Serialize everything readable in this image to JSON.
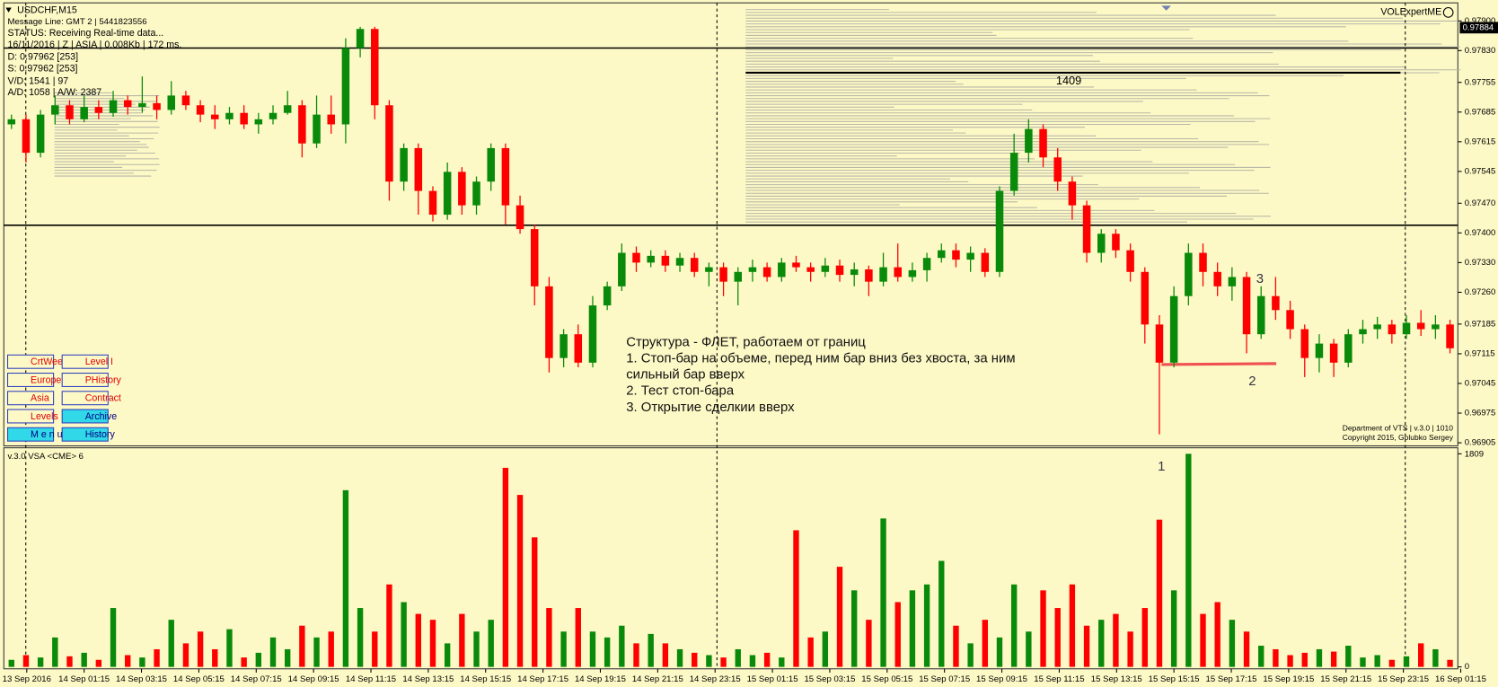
{
  "header": {
    "lines": [
      "USDCHF,M15",
      "Message Line: GMT 2 | 5441823556",
      "STATUS:  Receiving Real-time data...",
      "16/11/2016 | Z | ASIA | 0.008Kb | 172 ms.",
      "D: 0.97962  [253]",
      "S: 0.97962  [253]",
      "V/D: 1541 | 97",
      "A/D: 1058 | A/W: 2387"
    ],
    "brand": "VOLExpertME"
  },
  "buttons": [
    "CrtWeek",
    "Level I",
    "Europe",
    "PHistory",
    "Asia",
    "Contract",
    "Levels",
    "Archive",
    "M e n u",
    "History"
  ],
  "annotation": {
    "lines": [
      "Структура - ФЛЕТ, работаем от границ",
      "1. Стоп-бар на объеме, перед ним бар вниз без хвоста, за ним",
      "сильный бар вверх",
      "2. Тест стоп-бара",
      "3. Открытие сделкии вверх"
    ],
    "markers": [
      "1",
      "2",
      "3"
    ],
    "profile_value": 1409
  },
  "footer": [
    "Department of VTS | v.3.0 | 1010",
    "Copyright 2015, Golubko Sergey"
  ],
  "chart_data": {
    "type": "candlestick",
    "ylim": [
      0.969,
      0.97938
    ],
    "yticks": [
      {
        "value": 0.979,
        "label": "0.97900"
      },
      {
        "value": 0.9783,
        "label": "0.97830"
      },
      {
        "value": 0.97755,
        "label": "0.97755"
      },
      {
        "value": 0.97685,
        "label": "0.97685"
      },
      {
        "value": 0.97615,
        "label": "0.97615"
      },
      {
        "value": 0.97545,
        "label": "0.97545"
      },
      {
        "value": 0.9747,
        "label": "0.97470"
      },
      {
        "value": 0.974,
        "label": "0.97400"
      },
      {
        "value": 0.9733,
        "label": "0.97330"
      },
      {
        "value": 0.9726,
        "label": "0.97260"
      },
      {
        "value": 0.97185,
        "label": "0.97185"
      },
      {
        "value": 0.97115,
        "label": "0.97115"
      },
      {
        "value": 0.97045,
        "label": "0.97045"
      },
      {
        "value": 0.96975,
        "label": "0.96975"
      },
      {
        "value": 0.96905,
        "label": "0.96905"
      }
    ],
    "last_price": 0.97884,
    "levels": [
      0.97836,
      0.97418
    ],
    "up_color": "#0a8a0a",
    "down_color": "#ff0000",
    "time_labels": [
      "13 Sep 2016",
      "14 Sep 01:15",
      "14 Sep 03:15",
      "14 Sep 05:15",
      "14 Sep 07:15",
      "14 Sep 09:15",
      "14 Sep 11:15",
      "14 Sep 13:15",
      "14 Sep 15:15",
      "14 Sep 17:15",
      "14 Sep 19:15",
      "14 Sep 21:15",
      "14 Sep 23:15",
      "15 Sep 01:15",
      "15 Sep 03:15",
      "15 Sep 05:15",
      "15 Sep 07:15",
      "15 Sep 09:15",
      "15 Sep 11:15",
      "15 Sep 13:15",
      "15 Sep 15:15",
      "15 Sep 17:15",
      "15 Sep 19:15",
      "15 Sep 21:15",
      "15 Sep 23:15",
      "16 Sep 01:15"
    ],
    "candles": [
      [
        0.97656,
        0.97679,
        0.97645,
        0.97668
      ],
      [
        0.97668,
        0.97679,
        0.97566,
        0.97589
      ],
      [
        0.97589,
        0.9769,
        0.97578,
        0.97679
      ],
      [
        0.97679,
        0.97724,
        0.97656,
        0.97701
      ],
      [
        0.97701,
        0.97713,
        0.97656,
        0.97668
      ],
      [
        0.97668,
        0.97724,
        0.97661,
        0.97697
      ],
      [
        0.97697,
        0.97713,
        0.97668,
        0.97683
      ],
      [
        0.97683,
        0.97735,
        0.97674,
        0.97713
      ],
      [
        0.97713,
        0.97724,
        0.97679,
        0.97697
      ],
      [
        0.97697,
        0.97769,
        0.97683,
        0.97706
      ],
      [
        0.97706,
        0.97724,
        0.97668,
        0.9769
      ],
      [
        0.9769,
        0.97758,
        0.97679,
        0.97724
      ],
      [
        0.97724,
        0.97735,
        0.9769,
        0.97701
      ],
      [
        0.97701,
        0.97713,
        0.97661,
        0.97679
      ],
      [
        0.97679,
        0.97701,
        0.97645,
        0.97668
      ],
      [
        0.97668,
        0.97697,
        0.97656,
        0.97683
      ],
      [
        0.97683,
        0.97701,
        0.97645,
        0.97656
      ],
      [
        0.97656,
        0.97683,
        0.97634,
        0.97668
      ],
      [
        0.97668,
        0.97701,
        0.97656,
        0.97683
      ],
      [
        0.97683,
        0.97735,
        0.97679,
        0.97701
      ],
      [
        0.97701,
        0.97713,
        0.97578,
        0.97611
      ],
      [
        0.97611,
        0.97724,
        0.976,
        0.97679
      ],
      [
        0.97679,
        0.97724,
        0.97634,
        0.97656
      ],
      [
        0.97656,
        0.97859,
        0.97611,
        0.97836
      ],
      [
        0.97836,
        0.97886,
        0.97814,
        0.97881
      ],
      [
        0.97881,
        0.97886,
        0.97668,
        0.97701
      ],
      [
        0.97701,
        0.97713,
        0.97476,
        0.97521
      ],
      [
        0.97521,
        0.97611,
        0.97499,
        0.976
      ],
      [
        0.976,
        0.97611,
        0.97443,
        0.97499
      ],
      [
        0.97499,
        0.9751,
        0.97427,
        0.97443
      ],
      [
        0.97443,
        0.97566,
        0.97431,
        0.97544
      ],
      [
        0.97544,
        0.97555,
        0.97443,
        0.97465
      ],
      [
        0.97465,
        0.97533,
        0.97443,
        0.97521
      ],
      [
        0.97521,
        0.97611,
        0.97499,
        0.976
      ],
      [
        0.976,
        0.97611,
        0.9742,
        0.97465
      ],
      [
        0.97465,
        0.97488,
        0.97398,
        0.97409
      ],
      [
        0.97409,
        0.9742,
        0.97229,
        0.97274
      ],
      [
        0.97274,
        0.97296,
        0.97071,
        0.97105
      ],
      [
        0.97105,
        0.97173,
        0.97083,
        0.97161
      ],
      [
        0.97161,
        0.97184,
        0.97083,
        0.97094
      ],
      [
        0.97094,
        0.97251,
        0.97083,
        0.97229
      ],
      [
        0.97229,
        0.97285,
        0.97218,
        0.97274
      ],
      [
        0.97274,
        0.97375,
        0.97263,
        0.97353
      ],
      [
        0.97353,
        0.97368,
        0.97308,
        0.9733
      ],
      [
        0.9733,
        0.97359,
        0.97319,
        0.97346
      ],
      [
        0.97346,
        0.97359,
        0.97308,
        0.97323
      ],
      [
        0.97323,
        0.97353,
        0.97308,
        0.97341
      ],
      [
        0.97341,
        0.97353,
        0.97296,
        0.97308
      ],
      [
        0.97308,
        0.9733,
        0.97274,
        0.97319
      ],
      [
        0.97319,
        0.9733,
        0.97251,
        0.97285
      ],
      [
        0.97285,
        0.97319,
        0.97229,
        0.97308
      ],
      [
        0.97308,
        0.97337,
        0.97285,
        0.97319
      ],
      [
        0.97319,
        0.9733,
        0.97285,
        0.97296
      ],
      [
        0.97296,
        0.97341,
        0.97285,
        0.9733
      ],
      [
        0.9733,
        0.97346,
        0.97308,
        0.97319
      ],
      [
        0.97319,
        0.9733,
        0.97285,
        0.97308
      ],
      [
        0.97308,
        0.97341,
        0.97296,
        0.97323
      ],
      [
        0.97323,
        0.97337,
        0.97285,
        0.97301
      ],
      [
        0.97301,
        0.9733,
        0.97274,
        0.97314
      ],
      [
        0.97314,
        0.97323,
        0.97251,
        0.97285
      ],
      [
        0.97285,
        0.97353,
        0.97274,
        0.97319
      ],
      [
        0.97319,
        0.97375,
        0.97285,
        0.97296
      ],
      [
        0.97296,
        0.9733,
        0.97285,
        0.97312
      ],
      [
        0.97312,
        0.97353,
        0.97285,
        0.97341
      ],
      [
        0.97341,
        0.97375,
        0.9733,
        0.97359
      ],
      [
        0.97359,
        0.97375,
        0.97319,
        0.97337
      ],
      [
        0.97337,
        0.97368,
        0.97308,
        0.97353
      ],
      [
        0.97353,
        0.97364,
        0.97296,
        0.97308
      ],
      [
        0.97308,
        0.9751,
        0.97296,
        0.97499
      ],
      [
        0.97499,
        0.97634,
        0.97488,
        0.97589
      ],
      [
        0.97589,
        0.97668,
        0.97566,
        0.97645
      ],
      [
        0.97645,
        0.97656,
        0.97555,
        0.97578
      ],
      [
        0.97578,
        0.976,
        0.97499,
        0.97521
      ],
      [
        0.97521,
        0.97533,
        0.97431,
        0.97465
      ],
      [
        0.97465,
        0.97476,
        0.9733,
        0.97353
      ],
      [
        0.97353,
        0.97409,
        0.9733,
        0.97398
      ],
      [
        0.97398,
        0.97409,
        0.97341,
        0.97359
      ],
      [
        0.97359,
        0.97375,
        0.97285,
        0.97308
      ],
      [
        0.97308,
        0.97319,
        0.97139,
        0.97184
      ],
      [
        0.97184,
        0.97206,
        0.96925,
        0.97094
      ],
      [
        0.97094,
        0.97274,
        0.97083,
        0.97251
      ],
      [
        0.97251,
        0.97375,
        0.97229,
        0.97353
      ],
      [
        0.97353,
        0.97375,
        0.97274,
        0.97308
      ],
      [
        0.97308,
        0.9733,
        0.97251,
        0.97274
      ],
      [
        0.97274,
        0.97319,
        0.9724,
        0.97296
      ],
      [
        0.97296,
        0.97308,
        0.97116,
        0.97161
      ],
      [
        0.97161,
        0.97274,
        0.9715,
        0.97251
      ],
      [
        0.97251,
        0.97296,
        0.97195,
        0.97218
      ],
      [
        0.97218,
        0.9724,
        0.9715,
        0.97173
      ],
      [
        0.97173,
        0.97184,
        0.9706,
        0.97105
      ],
      [
        0.97105,
        0.97161,
        0.97071,
        0.97139
      ],
      [
        0.97139,
        0.9715,
        0.9706,
        0.97094
      ],
      [
        0.97094,
        0.97173,
        0.97083,
        0.97161
      ],
      [
        0.97161,
        0.97195,
        0.97139,
        0.97173
      ],
      [
        0.97173,
        0.97202,
        0.9715,
        0.97184
      ],
      [
        0.97184,
        0.97195,
        0.97139,
        0.97161
      ],
      [
        0.97161,
        0.97206,
        0.9715,
        0.97188
      ],
      [
        0.97188,
        0.97218,
        0.97157,
        0.97173
      ],
      [
        0.97173,
        0.97206,
        0.9715,
        0.97184
      ],
      [
        0.97184,
        0.97195,
        0.97116,
        0.97128
      ]
    ],
    "volume": {
      "title": "v.3.0 VSA <CME> 6",
      "ylim": [
        0,
        1860
      ],
      "yticks": [
        0,
        1809
      ],
      "values": [
        60,
        100,
        80,
        250,
        90,
        120,
        60,
        500,
        100,
        80,
        150,
        400,
        200,
        300,
        150,
        320,
        80,
        120,
        250,
        150,
        350,
        250,
        300,
        1500,
        500,
        300,
        700,
        550,
        450,
        400,
        200,
        450,
        300,
        400,
        1690,
        1460,
        1100,
        500,
        300,
        500,
        300,
        250,
        350,
        200,
        280,
        200,
        150,
        120,
        100,
        80,
        150,
        100,
        120,
        80,
        1160,
        250,
        300,
        850,
        650,
        400,
        1260,
        550,
        650,
        700,
        900,
        350,
        200,
        400,
        250,
        700,
        300,
        650,
        500,
        700,
        350,
        400,
        450,
        300,
        500,
        1250,
        650,
        1809,
        450,
        550,
        400,
        300,
        180,
        150,
        100,
        120,
        150,
        130,
        180,
        80,
        100,
        60,
        90,
        200,
        150,
        60
      ]
    }
  }
}
